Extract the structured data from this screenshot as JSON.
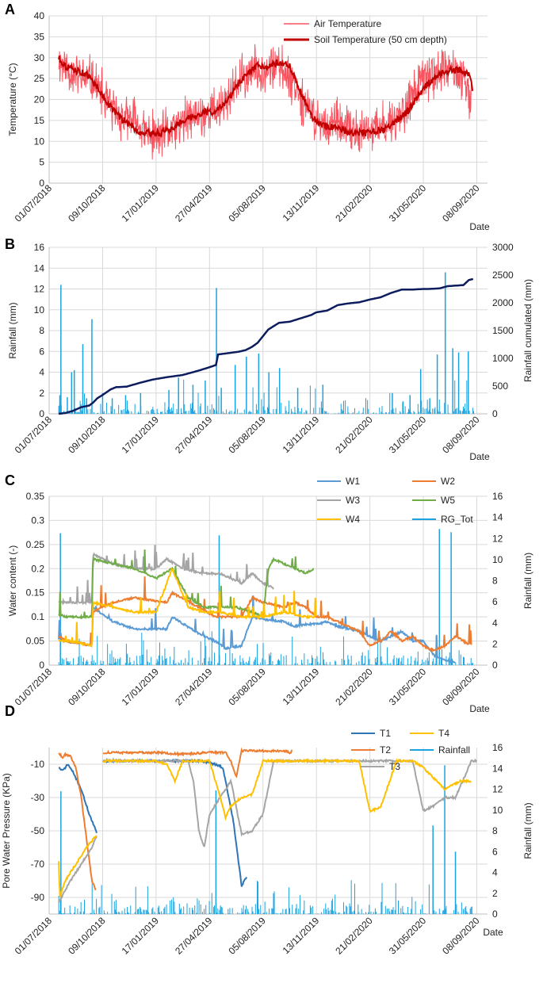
{
  "figure": {
    "date_ticks": [
      "01/07/2018",
      "09/10/2018",
      "17/01/2019",
      "27/04/2019",
      "05/08/2019",
      "13/11/2019",
      "21/02/2020",
      "31/05/2020",
      "08/09/2020"
    ],
    "x_axis_label": "Date"
  },
  "chart_data": [
    {
      "panel_letter": "A",
      "type": "line",
      "title": "",
      "xlabel": "Date",
      "ylabel": "Temperature (°C)",
      "ylim": [
        0,
        40
      ],
      "yticks": [
        0,
        5,
        10,
        15,
        20,
        25,
        30,
        35,
        40
      ],
      "x_unit": "days since 01/07/2018",
      "xlim": [
        0,
        820
      ],
      "legend_position": "top-right",
      "grid": true,
      "series": [
        {
          "name": "Air Temperature",
          "color": "#f9535f",
          "kind": "noisy",
          "noise": 4.5,
          "x": [
            18,
            40,
            60,
            80,
            100,
            120,
            140,
            160,
            180,
            200,
            215,
            235,
            255,
            275,
            300,
            320,
            340,
            360,
            380,
            400,
            420,
            440,
            460,
            480,
            510,
            540,
            570,
            590,
            615,
            640,
            660,
            680,
            700,
            720,
            740,
            760,
            775,
            790
          ],
          "values": [
            29,
            27,
            25,
            25,
            21,
            17,
            15,
            15,
            12,
            11,
            12,
            13,
            15,
            16,
            17,
            18,
            21,
            25,
            27,
            27,
            28,
            27,
            24,
            18,
            14,
            14,
            12,
            12,
            13,
            15,
            17,
            21,
            25,
            26,
            27,
            27,
            24,
            18
          ]
        },
        {
          "name": "Soil Temperature (50 cm depth)",
          "color": "#c00000",
          "kind": "smooth",
          "noise": 0.8,
          "x": [
            18,
            30,
            50,
            70,
            90,
            110,
            130,
            150,
            170,
            190,
            210,
            230,
            250,
            270,
            290,
            310,
            330,
            350,
            370,
            390,
            410,
            430,
            450,
            470,
            490,
            510,
            540,
            570,
            600,
            630,
            650,
            670,
            690,
            710,
            730,
            750,
            770,
            785,
            793
          ],
          "values": [
            30,
            28,
            27,
            26,
            23,
            19,
            16,
            14,
            12,
            12,
            12,
            13,
            15,
            16,
            17,
            17,
            19,
            23,
            26,
            28,
            28,
            29,
            28,
            22,
            16,
            14,
            13,
            12,
            12,
            13,
            15,
            17,
            21,
            24,
            26,
            27,
            27,
            26,
            22
          ]
        }
      ]
    },
    {
      "panel_letter": "B",
      "type": "bar+line",
      "title": "",
      "xlabel": "Date",
      "ylabel": "Rainfall (mm)",
      "y2label": "Rainfall cumulated (mm)",
      "ylim": [
        0,
        16
      ],
      "yticks": [
        0,
        2,
        4,
        6,
        8,
        10,
        12,
        14,
        16
      ],
      "y2lim": [
        0,
        3000
      ],
      "y2ticks": [
        0,
        500,
        1000,
        1500,
        2000,
        2500,
        3000
      ],
      "xlim": [
        0,
        820
      ],
      "grid": true,
      "rainfall_bars": {
        "name": "Rainfall",
        "color": "#1aa3e0",
        "x": [
          20,
          22,
          34,
          42,
          47,
          63,
          70,
          80,
          100,
          118,
          143,
          171,
          224,
          242,
          269,
          292,
          313,
          322,
          348,
          369,
          392,
          411,
          431,
          465,
          512,
          642,
          662,
          675,
          695,
          712,
          726,
          741,
          755,
          766,
          784
        ],
        "values": [
          1.8,
          12.4,
          1.6,
          4.0,
          4.2,
          6.7,
          1.5,
          9.1,
          2.0,
          1.5,
          1.8,
          2.0,
          2.3,
          3.5,
          2.8,
          3.2,
          12.1,
          2.5,
          4.7,
          5.5,
          5.8,
          4.0,
          4.4,
          2.5,
          2.8,
          2.0,
          1.2,
          1.8,
          4.3,
          1.5,
          5.7,
          13.6,
          6.3,
          5.9,
          6.0
        ]
      },
      "cumulative_line": {
        "name": "Rainfall cumulated",
        "color": "#0c1c5e",
        "x": [
          18,
          30,
          45,
          60,
          75,
          82,
          90,
          100,
          115,
          125,
          145,
          170,
          195,
          220,
          250,
          280,
          300,
          312,
          316,
          340,
          355,
          368,
          380,
          390,
          400,
          410,
          420,
          430,
          450,
          470,
          490,
          500,
          520,
          540,
          560,
          580,
          600,
          620,
          640,
          660,
          680,
          700,
          710,
          730,
          745,
          760,
          775,
          785,
          793
        ],
        "values": [
          0,
          15,
          55,
          120,
          150,
          200,
          280,
          340,
          440,
          480,
          490,
          560,
          620,
          660,
          700,
          780,
          840,
          880,
          1070,
          1100,
          1120,
          1150,
          1210,
          1280,
          1400,
          1520,
          1580,
          1640,
          1660,
          1720,
          1780,
          1830,
          1860,
          1960,
          1990,
          2010,
          2060,
          2100,
          2180,
          2240,
          2240,
          2250,
          2250,
          2260,
          2300,
          2310,
          2320,
          2410,
          2430
        ]
      }
    },
    {
      "panel_letter": "C",
      "type": "line+bar",
      "title": "",
      "xlabel": "Date",
      "ylabel": "Water content (-)",
      "y2label": "Rainfall (mm)",
      "ylim": [
        0,
        0.35
      ],
      "yticks": [
        0,
        0.05,
        0.1,
        0.15,
        0.2,
        0.25,
        0.3,
        0.35
      ],
      "y2lim": [
        0,
        16
      ],
      "y2ticks": [
        0,
        2,
        4,
        6,
        8,
        10,
        12,
        14,
        16
      ],
      "xlim": [
        0,
        820
      ],
      "grid": true,
      "legend_position": "top-right",
      "legend_order": [
        "W1",
        "W2",
        "W3",
        "W5",
        "W4",
        "RG_Tot"
      ],
      "series": [
        {
          "name": "W1",
          "color": "#5b9bd5",
          "x": [
            18,
            30,
            60,
            80,
            82,
            120,
            160,
            220,
            230,
            280,
            310,
            330,
            360,
            380,
            400,
            440,
            460,
            480,
            500,
            520,
            540,
            560,
            580,
            600,
            620,
            640,
            660,
            680,
            700,
            720,
            740,
            760
          ],
          "values": [
            0.055,
            0.05,
            0.045,
            0.04,
            0.12,
            0.09,
            0.075,
            0.075,
            0.1,
            0.065,
            0.05,
            0.035,
            0.04,
            0.1,
            0.095,
            0.09,
            0.08,
            0.085,
            0.085,
            0.09,
            0.08,
            0.075,
            0.07,
            0.06,
            0.05,
            0.06,
            0.07,
            0.05,
            0.05,
            0.02,
            0.01,
            0.005
          ]
        },
        {
          "name": "W2",
          "color": "#ed7d31",
          "x": [
            18,
            30,
            60,
            80,
            82,
            120,
            160,
            220,
            230,
            280,
            310,
            340,
            360,
            380,
            400,
            440,
            460,
            480,
            500,
            520,
            540,
            560,
            580,
            600,
            620,
            640,
            660,
            680,
            700,
            720,
            740,
            760,
            790
          ],
          "values": [
            0.06,
            0.05,
            0.045,
            0.04,
            0.11,
            0.13,
            0.14,
            0.13,
            0.15,
            0.12,
            0.1,
            0.1,
            0.1,
            0.14,
            0.13,
            0.12,
            0.13,
            0.12,
            0.1,
            0.1,
            0.09,
            0.08,
            0.07,
            0.04,
            0.05,
            0.07,
            0.05,
            0.06,
            0.04,
            0.03,
            0.04,
            0.06,
            0.04
          ]
        },
        {
          "name": "W3",
          "color": "#a5a5a5",
          "x": [
            18,
            40,
            60,
            80,
            82,
            120,
            160,
            200,
            220,
            250,
            290,
            320,
            360,
            380,
            400,
            420
          ],
          "values": [
            0.13,
            0.13,
            0.13,
            0.13,
            0.23,
            0.21,
            0.2,
            0.2,
            0.22,
            0.2,
            0.19,
            0.19,
            0.17,
            0.19,
            0.17,
            0.16
          ]
        },
        {
          "name": "W5",
          "color": "#70ad47",
          "x": [
            18,
            30,
            60,
            80,
            82,
            120,
            160,
            200,
            230,
            260,
            290,
            320,
            350,
            380,
            400,
            410,
            420,
            440,
            460,
            480,
            495
          ],
          "values": [
            0.105,
            0.1,
            0.1,
            0.1,
            0.22,
            0.21,
            0.2,
            0.18,
            0.2,
            0.14,
            0.12,
            0.12,
            0.12,
            0.11,
            0.1,
            0.2,
            0.22,
            0.21,
            0.2,
            0.19,
            0.2
          ]
        },
        {
          "name": "W4",
          "color": "#ffc000",
          "x": [
            18,
            40,
            60,
            80,
            82,
            120,
            160,
            200,
            230,
            260,
            290,
            320,
            360,
            400,
            440,
            480,
            500
          ],
          "values": [
            0.05,
            0.05,
            0.045,
            0.04,
            0.13,
            0.12,
            0.11,
            0.11,
            0.2,
            0.12,
            0.11,
            0.11,
            0.1,
            0.1,
            0.11,
            0.1,
            0.1
          ]
        }
      ],
      "rainfall_bars": {
        "name": "RG_Tot",
        "color": "#1aa3e0"
      }
    },
    {
      "panel_letter": "D",
      "type": "line+bar",
      "title": "",
      "xlabel": "Date",
      "ylabel": "Pore Water Pressure (KPa)",
      "y2label": "Rainfall (mm)",
      "ylim": [
        -100,
        0
      ],
      "yticks": [
        -10,
        -30,
        -50,
        -70,
        -90
      ],
      "y2lim": [
        0,
        16
      ],
      "y2ticks": [
        0,
        2,
        4,
        6,
        8,
        10,
        12,
        14,
        16
      ],
      "xlim": [
        0,
        820
      ],
      "grid": true,
      "legend_position": "top-right",
      "legend_order": [
        "T1",
        "T4",
        "T2",
        "Rainfall",
        "T3"
      ],
      "series": [
        {
          "name": "T1",
          "color": "#2e75b6",
          "x": [
            18,
            25,
            35,
            45,
            60,
            75,
            90,
            90,
            100,
            150,
            200,
            250,
            280,
            300,
            310,
            325,
            345,
            360,
            370
          ],
          "values": [
            -12,
            -14,
            -10,
            -15,
            -25,
            -40,
            -52,
            null,
            -8,
            -8,
            -8,
            -8,
            -8,
            -9,
            -10,
            -12,
            -45,
            -83,
            -77
          ]
        },
        {
          "name": "T2",
          "color": "#ed7d31",
          "x": [
            18,
            25,
            30,
            40,
            50,
            60,
            70,
            80,
            88,
            88,
            100,
            150,
            200,
            250,
            300,
            330,
            340,
            350,
            360,
            380,
            400,
            440,
            450,
            455
          ],
          "values": [
            -3,
            -6,
            -4,
            -5,
            -12,
            -30,
            -55,
            -80,
            -86,
            null,
            -3,
            -3,
            -3,
            -4,
            -3,
            -3,
            -8,
            -18,
            -2,
            -2,
            -2,
            -2,
            -3,
            -2
          ]
        },
        {
          "name": "T3",
          "color": "#a5a5a5",
          "x": [
            18,
            40,
            60,
            80,
            90,
            90,
            100,
            200,
            260,
            270,
            280,
            290,
            300,
            320,
            340,
            360,
            380,
            400,
            420,
            470,
            540,
            600,
            630,
            650,
            680,
            700,
            720,
            740,
            760,
            790,
            800
          ],
          "values": [
            -93,
            -80,
            -70,
            -60,
            -52,
            null,
            -8,
            -8,
            -8,
            -20,
            -50,
            -60,
            -40,
            -30,
            -20,
            -52,
            -50,
            -40,
            -8,
            -8,
            -8,
            -8,
            -8,
            -8,
            -8,
            -38,
            -35,
            -30,
            -30,
            -8,
            -8
          ]
        },
        {
          "name": "T4",
          "color": "#ffc000",
          "x": [
            18,
            20,
            30,
            50,
            70,
            90,
            90,
            100,
            150,
            200,
            220,
            235,
            250,
            300,
            320,
            330,
            340,
            360,
            380,
            400,
            440,
            460,
            480,
            520,
            560,
            580,
            600,
            620,
            650,
            680,
            700,
            740,
            770,
            790
          ],
          "values": [
            -68,
            -90,
            -80,
            -70,
            -60,
            -52,
            null,
            -8,
            -8,
            -8,
            -10,
            -20,
            -8,
            -8,
            -30,
            -42,
            -35,
            -30,
            -28,
            -8,
            -8,
            -8,
            -8,
            -8,
            -8,
            -8,
            -38,
            -36,
            -8,
            -8,
            -12,
            -25,
            -20,
            -20
          ]
        }
      ],
      "rainfall_bars": {
        "name": "Rainfall",
        "color": "#1aa3e0"
      }
    }
  ]
}
